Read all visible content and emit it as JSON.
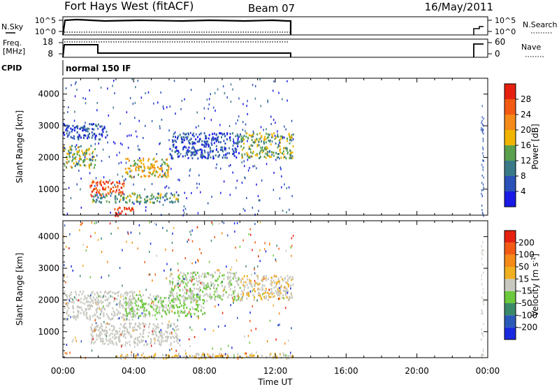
{
  "header": {
    "title": "Fort Hays West (fitACF)",
    "beam": "Beam 07",
    "date": "16/May/2011"
  },
  "params_panel": {
    "nsky_label": "N.Sky",
    "nsearch_label": "N.Search",
    "noise_ticks": [
      "10^5",
      "10^0"
    ],
    "freq_label": "Freq.",
    "freq_unit": "[MHz]",
    "freq_ticks": [
      "18",
      "8"
    ],
    "nave_label": "Nave",
    "nave_ticks": [
      "60",
      "0"
    ],
    "cpid_label": "CPID",
    "cpid_value": "normal 150 IF"
  },
  "x_axis": {
    "label": "Time UT",
    "tick_labels": [
      "00:00",
      "04:00",
      "08:00",
      "12:00",
      "16:00",
      "20:00",
      "00:00"
    ],
    "range_hours": [
      0,
      24
    ]
  },
  "power_colorbar": {
    "label": "Power [dB]",
    "tick_labels": [
      "4",
      "8",
      "12",
      "16",
      "20",
      "24",
      "28"
    ],
    "colors": [
      "#1a1ae6",
      "#2a52b8",
      "#3a7a88",
      "#5aa04e",
      "#f0b400",
      "#f58a18",
      "#f25a14",
      "#e62010"
    ]
  },
  "velocity_colorbar": {
    "label_main": "Velocity [m s",
    "label_exp": "-1",
    "label_close": "]",
    "tick_labels": [
      "200",
      "100",
      "50",
      "15",
      "-15",
      "-50",
      "-100",
      "-200"
    ],
    "colors": [
      "#1a2ae0",
      "#2a5ab8",
      "#3a8a6a",
      "#6cc83c",
      "#c8c8c0",
      "#f0b020",
      "#f58a18",
      "#f25a14",
      "#e62010"
    ]
  },
  "chart_data": [
    {
      "type": "heatmap",
      "name": "power",
      "ylabel": "Slant Range [km]",
      "y_tick_labels": [
        "1000",
        "2000",
        "3000",
        "4000"
      ],
      "ylim": [
        180,
        4500
      ],
      "xlim": [
        0,
        24
      ],
      "data_coverage_hours": [
        [
          0,
          13.05
        ],
        [
          23.6,
          23.75
        ]
      ],
      "colorbar_range": [
        0,
        31
      ],
      "echo_regions": [
        {
          "t_start": 0.0,
          "t_end": 1.8,
          "r_start": 1700,
          "r_end": 2400,
          "value": 15
        },
        {
          "t_start": 1.5,
          "t_end": 3.5,
          "r_start": 800,
          "r_end": 1300,
          "value": 26
        },
        {
          "t_start": 1.5,
          "t_end": 6.5,
          "r_start": 600,
          "r_end": 900,
          "value": 12
        },
        {
          "t_start": 2.8,
          "t_end": 4.0,
          "r_start": 180,
          "r_end": 450,
          "value": 28
        },
        {
          "t_start": 3.5,
          "t_end": 6.0,
          "r_start": 1400,
          "r_end": 2000,
          "value": 18
        },
        {
          "t_start": 6.0,
          "t_end": 10.0,
          "r_start": 2000,
          "r_end": 2800,
          "value": 6
        },
        {
          "t_start": 10.0,
          "t_end": 13.0,
          "r_start": 2000,
          "r_end": 2800,
          "value": 14
        },
        {
          "t_start": 0.0,
          "t_end": 2.5,
          "r_start": 2600,
          "r_end": 3100,
          "value": 6
        }
      ]
    },
    {
      "type": "heatmap",
      "name": "velocity",
      "ylabel": "Slant Range [km]",
      "y_tick_labels": [
        "1000",
        "2000",
        "3000",
        "4000"
      ],
      "ylim": [
        180,
        4500
      ],
      "xlim": [
        0,
        24
      ],
      "data_coverage_hours": [
        [
          0,
          13.05
        ],
        [
          23.6,
          23.75
        ]
      ],
      "colorbar_range": [
        -250,
        250
      ],
      "echo_regions": [
        {
          "t_start": 0.0,
          "t_end": 4.0,
          "r_start": 1400,
          "r_end": 2300,
          "value": 0
        },
        {
          "t_start": 1.5,
          "t_end": 6.5,
          "r_start": 600,
          "r_end": 1300,
          "value": 0
        },
        {
          "t_start": 3.5,
          "t_end": 8.0,
          "r_start": 1500,
          "r_end": 2200,
          "value": -30
        },
        {
          "t_start": 6.0,
          "t_end": 10.0,
          "r_start": 2000,
          "r_end": 2900,
          "value": -25
        },
        {
          "t_start": 10.0,
          "t_end": 13.0,
          "r_start": 2000,
          "r_end": 2800,
          "value": 25
        },
        {
          "t_start": 3.0,
          "t_end": 13.0,
          "r_start": 180,
          "r_end": 350,
          "value": 30
        }
      ]
    }
  ]
}
